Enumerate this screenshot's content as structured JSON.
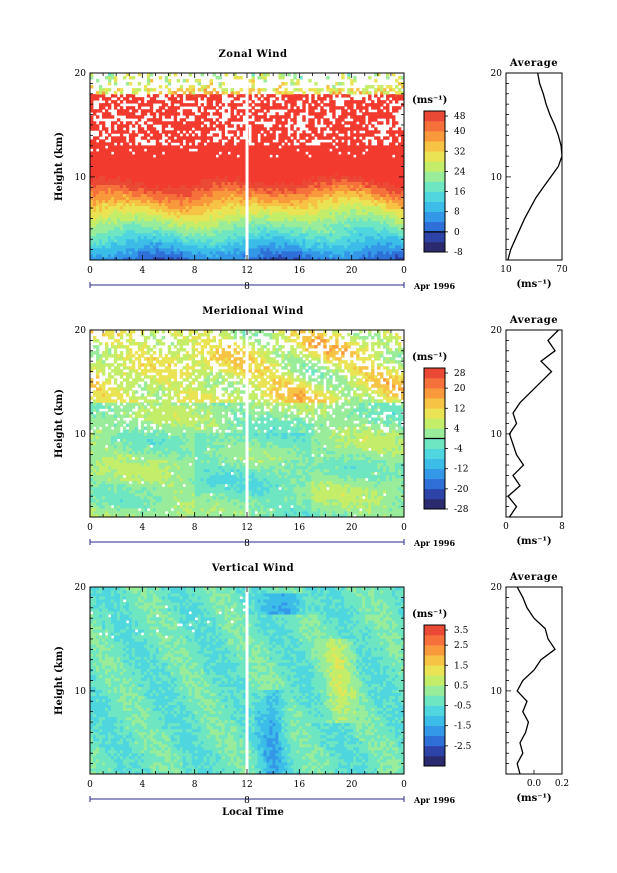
{
  "chart_data": [
    {
      "type": "heatmap",
      "title": "Zonal Wind",
      "ylabel": "Height (km)",
      "xlabel": "",
      "xlim": [
        0,
        24
      ],
      "ylim": [
        2,
        20
      ],
      "xticks": [
        "0",
        "4",
        "8",
        "12",
        "16",
        "20",
        "0"
      ],
      "yticks": [
        "10",
        "20"
      ],
      "day_label": "8",
      "date_label": "Apr 1996",
      "colorbar": {
        "unit": "(ms⁻¹)",
        "levels": [
          -8,
          -4,
          0,
          4,
          8,
          12,
          16,
          20,
          24,
          28,
          32,
          36,
          40,
          44,
          48
        ],
        "tick_labels": [
          "-8",
          "0",
          "8",
          "16",
          "24",
          "32",
          "40",
          "48"
        ],
        "contour_at": 0
      },
      "profile": {
        "title": "Average",
        "xlabel": "(ms⁻¹)",
        "xlim": [
          10,
          70
        ],
        "xticks": [
          "10",
          "70"
        ],
        "yticks": [
          "10",
          "20"
        ],
        "height": [
          2,
          3,
          4,
          5,
          6,
          7,
          8,
          9,
          10,
          11,
          12,
          13,
          14,
          15,
          16,
          17,
          18,
          19,
          20
        ],
        "values": [
          12,
          15,
          20,
          25,
          30,
          36,
          42,
          50,
          58,
          66,
          70,
          69,
          66,
          62,
          57,
          53,
          50,
          46,
          44
        ]
      }
    },
    {
      "type": "heatmap",
      "title": "Meridional Wind",
      "ylabel": "Height (km)",
      "xlabel": "",
      "xlim": [
        0,
        24
      ],
      "ylim": [
        2,
        20
      ],
      "xticks": [
        "0",
        "4",
        "8",
        "12",
        "16",
        "20",
        "0"
      ],
      "yticks": [
        "10",
        "20"
      ],
      "day_label": "8",
      "date_label": "Apr 1996",
      "colorbar": {
        "unit": "(ms⁻¹)",
        "levels": [
          -28,
          -24,
          -20,
          -16,
          -12,
          -8,
          -4,
          0,
          4,
          8,
          12,
          16,
          20,
          24,
          28
        ],
        "tick_labels": [
          "-28",
          "-20",
          "-12",
          "-4",
          "4",
          "12",
          "20",
          "28"
        ],
        "contour_at": 0
      },
      "profile": {
        "title": "Average",
        "xlabel": "(ms⁻¹)",
        "xlim": [
          0,
          8
        ],
        "xticks": [
          "0",
          "8"
        ],
        "yticks": [
          "10",
          "20"
        ],
        "height": [
          2,
          3,
          4,
          5,
          6,
          7,
          8,
          9,
          10,
          11,
          12,
          13,
          14,
          15,
          16,
          17,
          18,
          19,
          20
        ],
        "values": [
          0.5,
          1.5,
          0.3,
          2.0,
          1.0,
          2.5,
          1.5,
          1.0,
          0.5,
          1.5,
          1.0,
          2.0,
          3.5,
          5.0,
          6.5,
          5.0,
          7.0,
          6.0,
          7.5
        ]
      }
    },
    {
      "type": "heatmap",
      "title": "Vertical Wind",
      "ylabel": "Height (km)",
      "xlabel": "Local Time",
      "xlim": [
        0,
        24
      ],
      "ylim": [
        2,
        20
      ],
      "xticks": [
        "0",
        "4",
        "8",
        "12",
        "16",
        "20",
        "0"
      ],
      "yticks": [
        "10",
        "20"
      ],
      "day_label": "8",
      "date_label": "Apr 1996",
      "colorbar": {
        "unit": "(ms⁻¹)",
        "levels": [
          -3.5,
          -3.0,
          -2.5,
          -2.0,
          -1.5,
          -1.0,
          -0.5,
          0.0,
          0.5,
          1.0,
          1.5,
          2.0,
          2.5,
          3.0,
          3.5
        ],
        "tick_labels": [
          "-2.5",
          "-1.5",
          "-0.5",
          "0.5",
          "1.5",
          "2.5",
          "3.5"
        ],
        "contour_at": null
      },
      "profile": {
        "title": "Average",
        "xlabel": "(ms⁻¹)",
        "xlim": [
          -0.2,
          0.2
        ],
        "xticks": [
          "0.0",
          "0.2"
        ],
        "yticks": [
          "10",
          "20"
        ],
        "height": [
          2,
          3,
          4,
          5,
          6,
          7,
          8,
          9,
          10,
          11,
          12,
          13,
          14,
          15,
          16,
          17,
          18,
          19,
          20
        ],
        "values": [
          -0.1,
          -0.12,
          -0.08,
          -0.1,
          -0.06,
          -0.04,
          -0.08,
          -0.05,
          -0.12,
          -0.08,
          0.0,
          0.05,
          0.15,
          0.1,
          0.08,
          0.0,
          -0.05,
          -0.08,
          -0.12
        ]
      }
    }
  ]
}
